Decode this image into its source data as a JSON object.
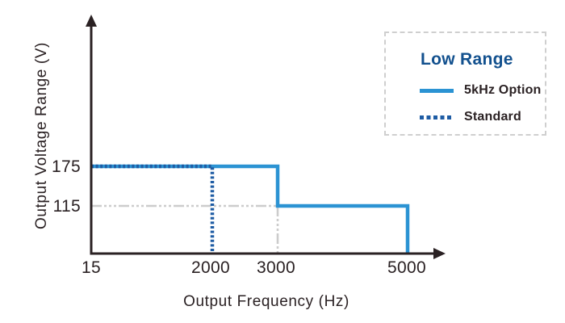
{
  "colors": {
    "axis": "#2a2123",
    "solid_series": "#2b93d3",
    "dashed_series": "#1e5ca4",
    "reference": "#cccccc",
    "legend_title": "#12508e",
    "legend_border": "#cfcfcf",
    "background": "#ffffff"
  },
  "chart_data": {
    "type": "line",
    "title": "",
    "xlabel": "Output Frequency (Hz)",
    "ylabel": "Output Voltage Range (V)",
    "x_ticks": [
      "15",
      "2000",
      "3000",
      "5000"
    ],
    "y_ticks": [
      "175",
      "115"
    ],
    "axes_style": "arrow-ended, no gridlines, schematic (non-linear) spacing",
    "legend": {
      "title": "Low Range",
      "position": "top-right",
      "border": "dashed gray box",
      "entries": [
        {
          "label": "5kHz Option",
          "style": "solid",
          "color": "#2b93d3"
        },
        {
          "label": "Standard",
          "style": "dashed",
          "color": "#1e5ca4"
        }
      ]
    },
    "series": [
      {
        "name": "5kHz Option",
        "style": "solid",
        "color": "#2b93d3",
        "points": [
          [
            15,
            175
          ],
          [
            3000,
            175
          ],
          [
            3000,
            115
          ],
          [
            5000,
            115
          ],
          [
            5000,
            0
          ]
        ]
      },
      {
        "name": "Standard",
        "style": "dashed",
        "color": "#1e5ca4",
        "points": [
          [
            15,
            175
          ],
          [
            2000,
            175
          ],
          [
            2000,
            0
          ]
        ]
      }
    ],
    "reference_lines": [
      {
        "name": "115V level leader",
        "color": "#cccccc",
        "points": [
          [
            15,
            115
          ],
          [
            3000,
            115
          ]
        ]
      },
      {
        "name": "3000Hz drop leader",
        "color": "#cccccc",
        "points": [
          [
            3000,
            115
          ],
          [
            3000,
            0
          ]
        ]
      }
    ]
  }
}
